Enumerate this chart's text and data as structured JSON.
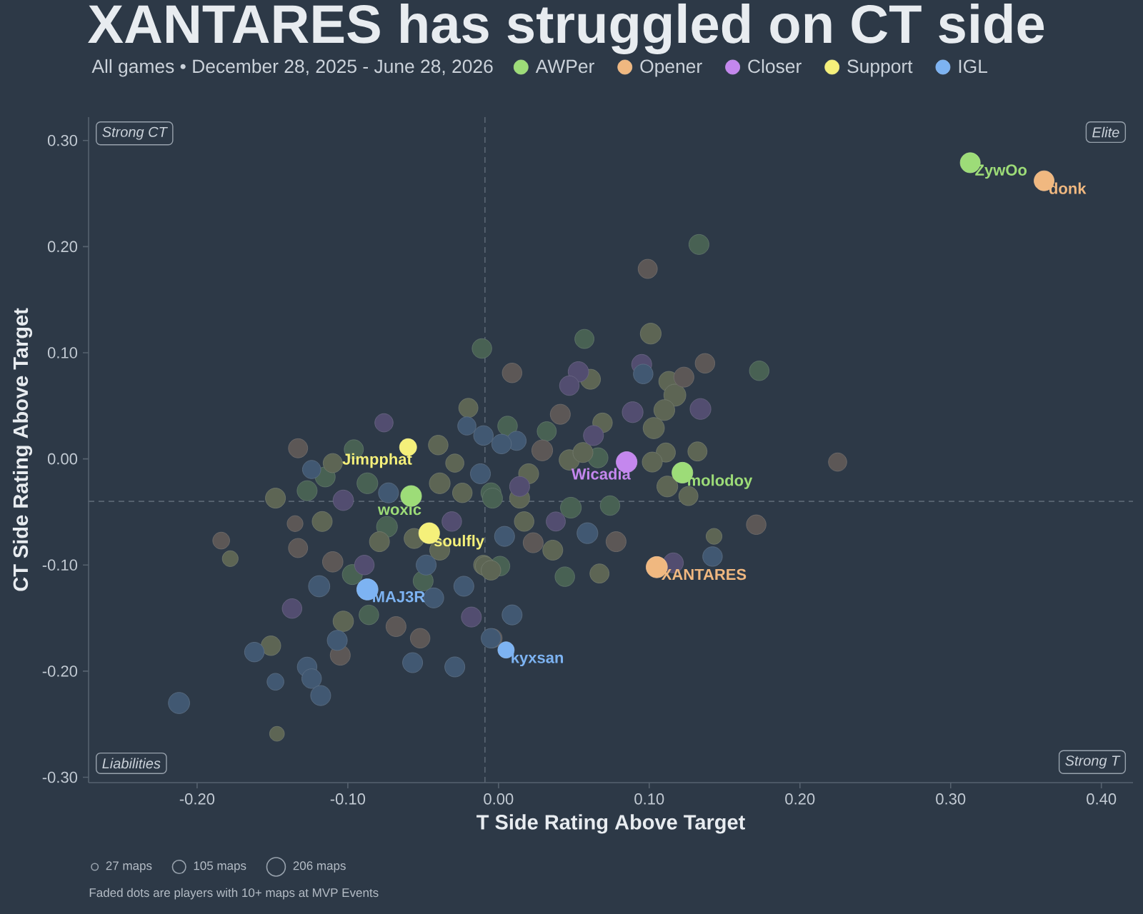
{
  "chart_data": {
    "type": "bubble",
    "title": "XANTARES has struggled on CT side",
    "subtitle": "All games • December 28, 2025 - June 28, 2026",
    "xlabel": "T Side Rating Above Target",
    "ylabel": "CT Side Rating Above Target",
    "xlim": [
      -0.272,
      0.421
    ],
    "ylim": [
      -0.305,
      0.322
    ],
    "xticks": [
      {
        "value": -0.2,
        "label": "-0.20"
      },
      {
        "value": -0.1,
        "label": "-0.10"
      },
      {
        "value": 0,
        "label": "0.00"
      },
      {
        "value": 0.1,
        "label": "0.10"
      },
      {
        "value": 0.2,
        "label": "0.20"
      },
      {
        "value": 0.3,
        "label": "0.30"
      },
      {
        "value": 0.4,
        "label": "0.40"
      }
    ],
    "yticks": [
      {
        "value": -0.3,
        "label": "-0.30"
      },
      {
        "value": -0.2,
        "label": "-0.20"
      },
      {
        "value": -0.1,
        "label": "-0.10"
      },
      {
        "value": 0,
        "label": "0.00"
      },
      {
        "value": 0.1,
        "label": "0.10"
      },
      {
        "value": 0.2,
        "label": "0.20"
      },
      {
        "value": 0.3,
        "label": "0.30"
      }
    ],
    "legend": "top",
    "marker": "circle",
    "size_legend": [
      {
        "value": 27,
        "label": "27 maps"
      },
      {
        "value": 105,
        "label": "105 maps"
      },
      {
        "value": 206,
        "label": "206 maps"
      }
    ],
    "ref_lines": [
      {
        "axis": "x",
        "value": -0.009,
        "color": "#5a6673",
        "line_style": "dashed"
      },
      {
        "axis": "y",
        "value": -0.04,
        "color": "#5a6673",
        "line_style": "dashed"
      }
    ],
    "series": [
      {
        "color": "#486153",
        "x": [
          -0.011,
          -0.096,
          -0.115,
          -0.087,
          -0.127,
          -0.005,
          -0.074,
          -0.097,
          -0.05,
          -0.086,
          0.133,
          0.057,
          0.006,
          0.032,
          0.066,
          -0.004,
          0.048,
          0.074,
          0.001,
          0.044,
          0.173
        ],
        "values": [
          0.104,
          0.009,
          -0.017,
          -0.023,
          -0.03,
          -0.032,
          -0.064,
          -0.109,
          -0.115,
          -0.147,
          0.202,
          0.113,
          0.031,
          0.026,
          0.001,
          -0.037,
          -0.046,
          -0.044,
          -0.101,
          -0.111,
          0.083
        ],
        "sizes": [
          230,
          220,
          240,
          260,
          240,
          240,
          260,
          240,
          240,
          230,
          240,
          220,
          230,
          220,
          240,
          240,
          260,
          230,
          230,
          230,
          230
        ]
      },
      {
        "color": "#5d6554",
        "x": [
          -0.02,
          -0.04,
          -0.11,
          -0.029,
          -0.039,
          -0.148,
          -0.117,
          -0.178,
          -0.079,
          -0.056,
          -0.039,
          -0.01,
          -0.103,
          -0.151,
          -0.147,
          0.101,
          0.061,
          0.113,
          0.117,
          0.11,
          0.103,
          0.069,
          0.047,
          0.056,
          0.111,
          0.132,
          0.102,
          0.02,
          0.112,
          0.126,
          0.014,
          0.017,
          0.036,
          0.143,
          -0.009,
          0.067,
          -0.024,
          -0.005
        ],
        "values": [
          0.048,
          0.013,
          -0.004,
          -0.004,
          -0.023,
          -0.037,
          -0.059,
          -0.094,
          -0.078,
          -0.075,
          -0.086,
          -0.1,
          -0.153,
          -0.176,
          -0.259,
          0.118,
          0.075,
          0.073,
          0.06,
          0.046,
          0.029,
          0.034,
          -0.001,
          0.006,
          0.006,
          0.007,
          -0.003,
          -0.014,
          -0.026,
          -0.035,
          -0.037,
          -0.059,
          -0.086,
          -0.073,
          -0.101,
          -0.108,
          -0.032,
          -0.105
        ],
        "sizes": [
          220,
          230,
          220,
          200,
          260,
          240,
          240,
          150,
          240,
          240,
          240,
          230,
          250,
          230,
          130,
          260,
          240,
          240,
          290,
          260,
          270,
          230,
          250,
          240,
          220,
          220,
          240,
          240,
          260,
          220,
          240,
          230,
          240,
          150,
          220,
          220,
          230,
          230
        ]
      },
      {
        "color": "#5c5756",
        "x": [
          -0.133,
          -0.135,
          -0.184,
          -0.133,
          -0.11,
          -0.068,
          -0.052,
          -0.105,
          0.099,
          0.009,
          0.137,
          0.123,
          0.041,
          0.029,
          0.225,
          0.078,
          0.171,
          -0.004,
          0.023
        ],
        "values": [
          0.01,
          -0.061,
          -0.077,
          -0.084,
          -0.097,
          -0.158,
          -0.169,
          -0.185,
          0.179,
          0.081,
          0.09,
          0.077,
          0.042,
          0.008,
          -0.003,
          -0.078,
          -0.062,
          -0.169,
          -0.079
        ],
        "sizes": [
          220,
          150,
          170,
          220,
          250,
          240,
          230,
          240,
          220,
          230,
          230,
          240,
          240,
          260,
          200,
          240,
          230,
          220,
          240
        ]
      },
      {
        "color": "#524d70",
        "x": [
          -0.076,
          -0.103,
          -0.031,
          -0.089,
          -0.137,
          -0.018,
          0.053,
          0.047,
          0.095,
          0.134,
          0.089,
          0.063,
          0.014,
          0.038,
          0.116
        ],
        "values": [
          0.034,
          -0.039,
          -0.059,
          -0.1,
          -0.141,
          -0.149,
          0.082,
          0.069,
          0.089,
          0.047,
          0.044,
          0.022,
          -0.026,
          -0.059,
          -0.098
        ],
        "sizes": [
          200,
          250,
          230,
          230,
          230,
          240,
          250,
          230,
          240,
          260,
          260,
          240,
          240,
          220,
          240
        ]
      },
      {
        "color": "#415872",
        "x": [
          -0.021,
          -0.01,
          -0.124,
          -0.012,
          -0.073,
          -0.048,
          -0.119,
          -0.023,
          -0.043,
          -0.162,
          -0.107,
          -0.057,
          -0.029,
          -0.127,
          -0.124,
          -0.118,
          -0.148,
          -0.212,
          -0.005,
          0.096,
          0.012,
          0.002,
          0.059,
          0.004,
          0.142,
          0.009
        ],
        "values": [
          0.031,
          0.022,
          -0.01,
          -0.014,
          -0.032,
          -0.1,
          -0.12,
          -0.12,
          -0.131,
          -0.182,
          -0.171,
          -0.192,
          -0.196,
          -0.196,
          -0.207,
          -0.223,
          -0.21,
          -0.23,
          -0.169,
          0.08,
          0.017,
          0.014,
          -0.07,
          -0.073,
          -0.092,
          -0.147
        ],
        "sizes": [
          200,
          230,
          200,
          240,
          240,
          240,
          270,
          240,
          240,
          230,
          240,
          240,
          240,
          230,
          230,
          240,
          170,
          270,
          230,
          230,
          220,
          230,
          260,
          240,
          230,
          240
        ]
      },
      {
        "name": "AWPer",
        "color": "#9ddc78",
        "x": [
          0.313,
          0.122,
          -0.058
        ],
        "values": [
          0.279,
          -0.013,
          -0.035
        ],
        "sizes": [
          240,
          260,
          260
        ]
      },
      {
        "name": "Opener",
        "color": "#f0b880",
        "x": [
          0.362,
          0.105
        ],
        "values": [
          0.262,
          -0.102
        ],
        "sizes": [
          240,
          270
        ]
      },
      {
        "name": "Closer",
        "color": "#c487ee",
        "x": [
          0.085
        ],
        "values": [
          -0.003
        ],
        "sizes": [
          260
        ]
      },
      {
        "name": "Support",
        "color": "#f5f07a",
        "x": [
          -0.06,
          -0.046
        ],
        "values": [
          0.011,
          -0.07
        ],
        "sizes": [
          175,
          260
        ]
      },
      {
        "name": "IGL",
        "color": "#7db3f2",
        "x": [
          -0.087,
          0.005
        ],
        "values": [
          -0.123,
          -0.18
        ],
        "sizes": [
          270,
          160
        ]
      }
    ],
    "annotations": [
      "Strong CT",
      "Elite",
      "Liabilities",
      "Strong T",
      "Faded dots are players with 10+ maps at MVP Events",
      {
        "text": "ZywOo",
        "x": 0.313,
        "y": 0.279
      },
      {
        "text": "donk",
        "x": 0.362,
        "y": 0.262
      },
      {
        "text": "molodoy",
        "x": 0.122,
        "y": -0.013
      },
      {
        "text": "Wicadia",
        "x": 0.085,
        "y": -0.003
      },
      {
        "text": "woxic",
        "x": -0.058,
        "y": -0.035
      },
      {
        "text": "Jimpphat",
        "x": -0.06,
        "y": 0.011
      },
      {
        "text": "soulfly",
        "x": -0.046,
        "y": -0.07
      },
      {
        "text": "XANTARES",
        "x": 0.105,
        "y": -0.102
      },
      {
        "text": "MAJ3R",
        "x": -0.087,
        "y": -0.123
      },
      {
        "text": "kyxsan",
        "x": 0.005,
        "y": -0.18
      }
    ]
  }
}
